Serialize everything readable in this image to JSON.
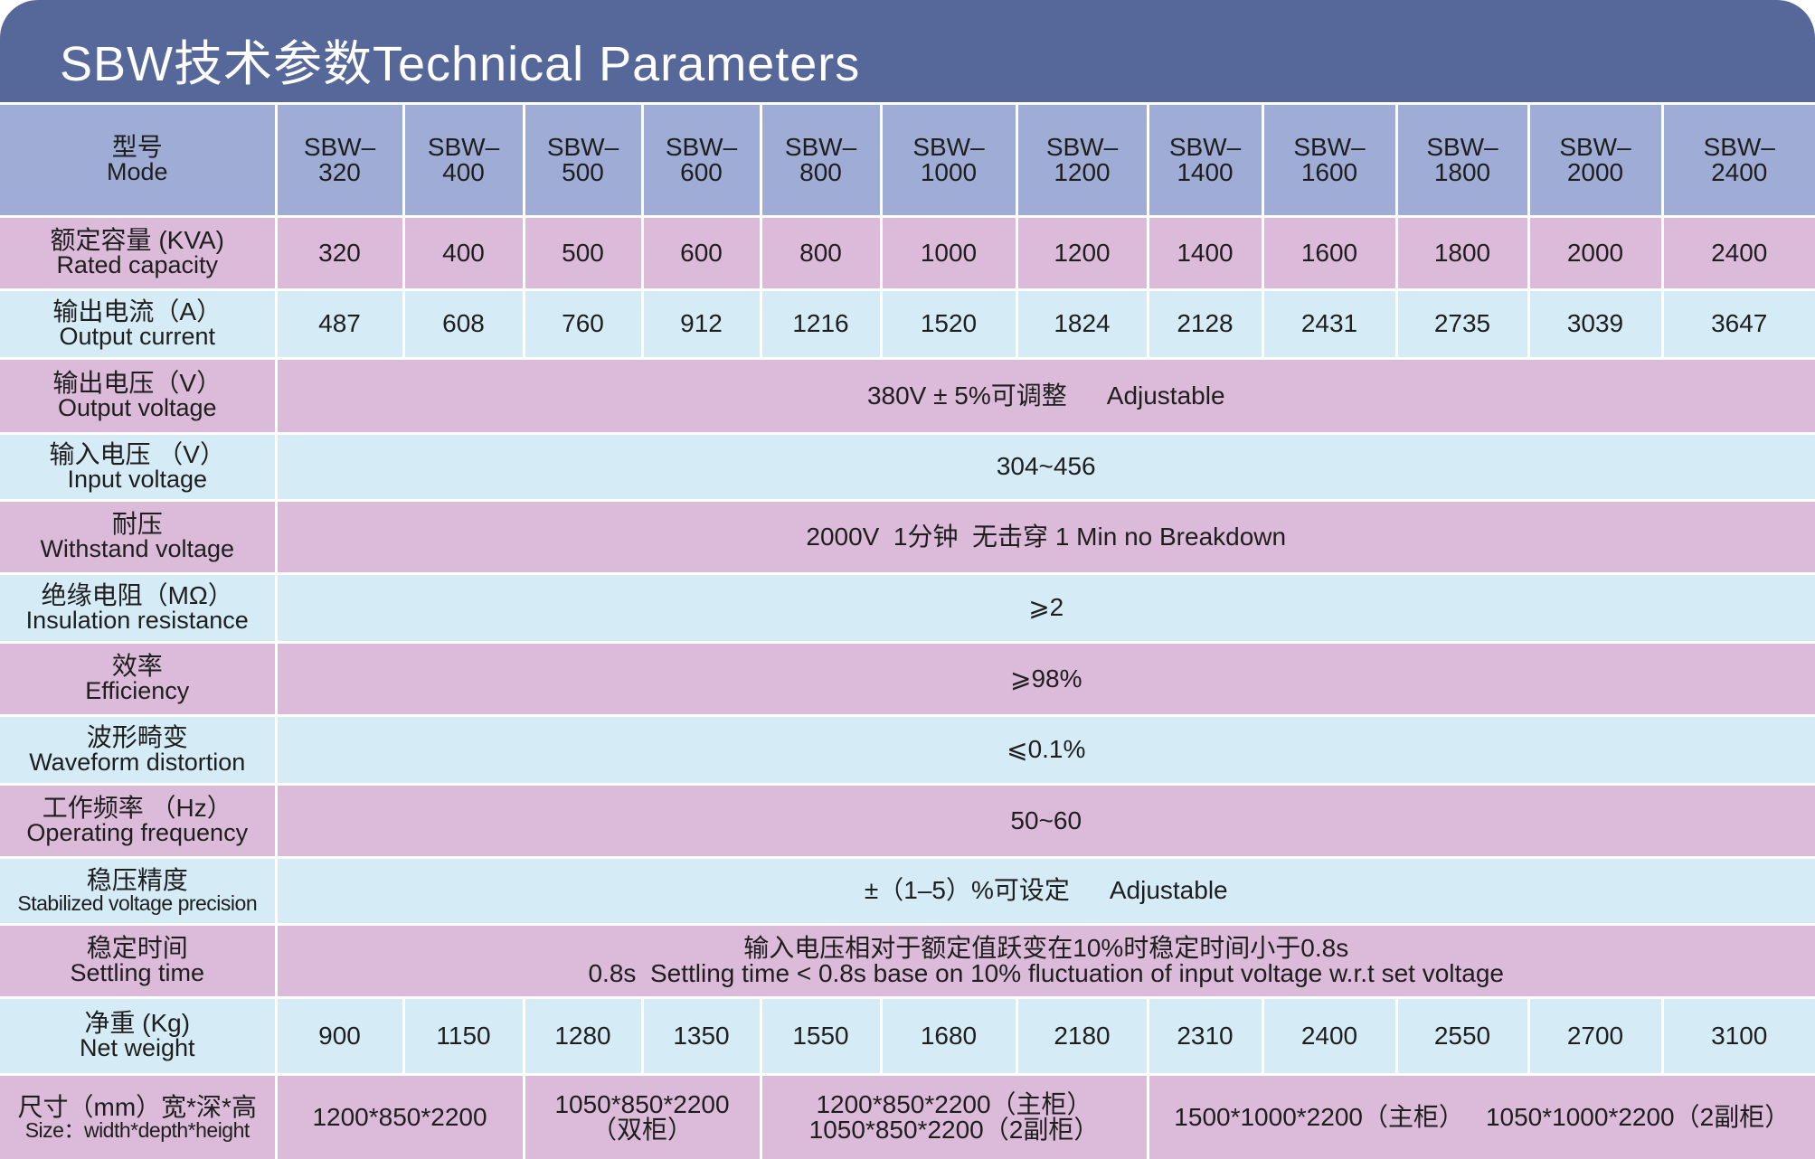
{
  "header": {
    "title": "SBW技术参数Technical Parameters"
  },
  "table": {
    "head": {
      "cn": "型号",
      "en": "Mode"
    },
    "columns": [
      [
        "SBW–",
        "320"
      ],
      [
        "SBW–",
        "400"
      ],
      [
        "SBW–",
        "500"
      ],
      [
        "SBW–",
        "600"
      ],
      [
        "SBW–",
        "800"
      ],
      [
        "SBW–",
        "1000"
      ],
      [
        "SBW–",
        "1200"
      ],
      [
        "SBW–",
        "1400"
      ],
      [
        "SBW–",
        "1600"
      ],
      [
        "SBW–",
        "1800"
      ],
      [
        "SBW–",
        "2000"
      ],
      [
        "SBW–",
        "2400"
      ]
    ],
    "rows": [
      {
        "cn": "额定容量 (KVA)",
        "en": "Rated capacity",
        "cells": [
          320,
          400,
          500,
          600,
          800,
          1000,
          1200,
          1400,
          1600,
          1800,
          2000,
          2400
        ]
      },
      {
        "cn": "输出电流（A）",
        "en": "Output current",
        "cells": [
          487,
          608,
          760,
          912,
          1216,
          1520,
          1824,
          2128,
          2431,
          2735,
          3039,
          3647
        ]
      },
      {
        "cn": "输出电压（V）",
        "en": "Output voltage",
        "parts": [
          "380V ± 5%可调整",
          "Adjustable"
        ]
      },
      {
        "cn": "输入电压 （V）",
        "en": "Input voltage",
        "parts": [
          "304~456"
        ]
      },
      {
        "cn": "耐压",
        "en": "Withstand voltage",
        "parts": [
          "2000V  1分钟  无击穿 1 Min no Breakdown"
        ]
      },
      {
        "cn": "绝缘电阻（MΩ）",
        "en": "Insulation resistance",
        "parts": [
          "⩾2"
        ]
      },
      {
        "cn": "效率",
        "en": "Efficiency",
        "parts": [
          "⩾98%"
        ]
      },
      {
        "cn": "波形畸变",
        "en": "Waveform distortion",
        "parts": [
          "⩽0.1%"
        ]
      },
      {
        "cn": "工作频率 （Hz）",
        "en": "Operating frequency",
        "parts": [
          "50~60"
        ]
      },
      {
        "cn": "稳压精度",
        "en": "Stabilized voltage precision",
        "parts": [
          "±（1–5）%可设定",
          "Adjustable"
        ]
      },
      {
        "cn": "稳定时间",
        "en": "Settling time",
        "lines": [
          "输入电压相对于额定值跃变在10%时稳定时间小于0.8s",
          "0.8s  Settling time < 0.8s base on 10% fluctuation of input voltage w.r.t set voltage"
        ]
      },
      {
        "cn": "净重 (Kg)",
        "en": "Net weight",
        "cells": [
          900,
          1150,
          1280,
          1350,
          1550,
          1680,
          2180,
          2310,
          2400,
          2550,
          2700,
          3100
        ]
      },
      {
        "cn": "尺寸（mm）宽*深*高",
        "en": "Size：width*depth*height",
        "groups": [
          [
            "1200*850*2200"
          ],
          [
            "1050*850*2200",
            "（双柜）"
          ],
          [
            "1200*850*2200（主柜）",
            "1050*850*2200（2副柜）"
          ],
          [
            "1500*1000*2200（主柜）",
            "1050*1000*2200（2副柜）"
          ]
        ]
      }
    ]
  }
}
